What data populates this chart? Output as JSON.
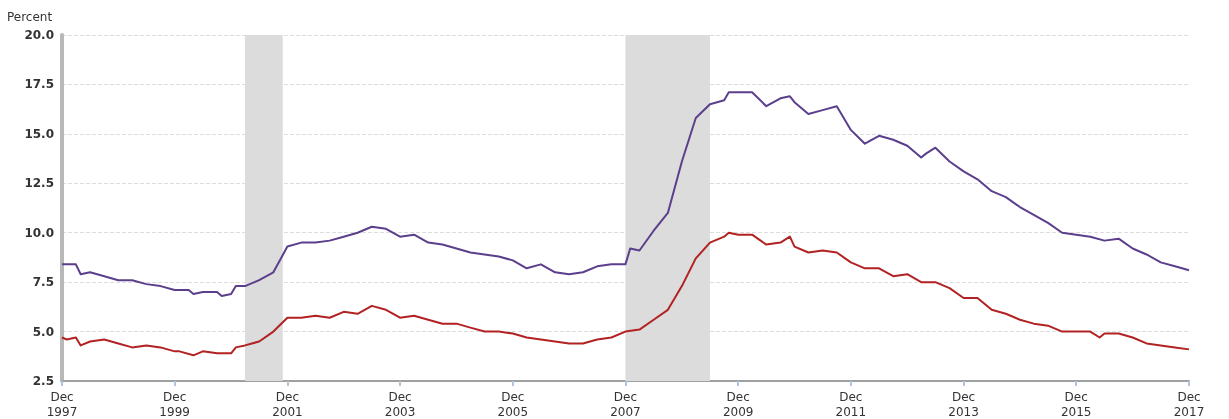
{
  "chart_data": {
    "type": "line",
    "ylabel": "Percent",
    "xlim": [
      "1997-12",
      "2017-12"
    ],
    "xticks": [
      {
        "value": "1997-12",
        "label": "Dec 1997"
      },
      {
        "value": "1999-12",
        "label": "Dec 1999"
      },
      {
        "value": "2001-12",
        "label": "Dec 2001"
      },
      {
        "value": "2003-12",
        "label": "Dec 2003"
      },
      {
        "value": "2005-12",
        "label": "Dec 2005"
      },
      {
        "value": "2007-12",
        "label": "Dec 2007"
      },
      {
        "value": "2009-12",
        "label": "Dec 2009"
      },
      {
        "value": "2011-12",
        "label": "Dec 2011"
      },
      {
        "value": "2013-12",
        "label": "Dec 2013"
      },
      {
        "value": "2015-12",
        "label": "Dec 2015"
      },
      {
        "value": "2017-12",
        "label": "Dec 2017"
      }
    ],
    "ylim": [
      2.5,
      20
    ],
    "yticks": [
      {
        "value": 2.5,
        "label": "2.5"
      },
      {
        "value": 5,
        "label": "5.0"
      },
      {
        "value": 7.5,
        "label": "7.5"
      },
      {
        "value": 10,
        "label": "10.0"
      },
      {
        "value": 12.5,
        "label": "12.5"
      },
      {
        "value": 15,
        "label": "15.0"
      },
      {
        "value": 17.5,
        "label": "17.5"
      },
      {
        "value": 20,
        "label": "20.0"
      }
    ],
    "grid": "y",
    "marker": "none",
    "line_style": "solid",
    "bands": [
      {
        "axis": "x",
        "from": "2001-03",
        "to": "2001-11",
        "color": "#dcdcdc"
      },
      {
        "axis": "x",
        "from": "2007-12",
        "to": "2009-06",
        "color": "#dcdcdc"
      }
    ],
    "series": [
      {
        "color": "#5b3f8c",
        "x": [
          "1997-12",
          "1998-03",
          "1998-04",
          "1998-06",
          "1998-09",
          "1998-12",
          "1999-03",
          "1999-06",
          "1999-09",
          "1999-12",
          "2000-03",
          "2000-04",
          "2000-06",
          "2000-09",
          "2000-10",
          "2000-12",
          "2001-01",
          "2001-03",
          "2001-06",
          "2001-09",
          "2001-12",
          "2002-03",
          "2002-06",
          "2002-09",
          "2002-12",
          "2003-03",
          "2003-06",
          "2003-09",
          "2003-12",
          "2004-03",
          "2004-06",
          "2004-09",
          "2004-12",
          "2005-03",
          "2005-06",
          "2005-09",
          "2005-12",
          "2006-03",
          "2006-06",
          "2006-09",
          "2006-12",
          "2007-03",
          "2007-06",
          "2007-09",
          "2007-12",
          "2008-01",
          "2008-03",
          "2008-06",
          "2008-09",
          "2008-12",
          "2009-03",
          "2009-06",
          "2009-09",
          "2009-10",
          "2009-12",
          "2010-03",
          "2010-06",
          "2010-09",
          "2010-11",
          "2010-12",
          "2011-03",
          "2011-06",
          "2011-09",
          "2011-12",
          "2012-03",
          "2012-06",
          "2012-09",
          "2012-12",
          "2013-03",
          "2013-04",
          "2013-06",
          "2013-09",
          "2013-12",
          "2014-03",
          "2014-06",
          "2014-09",
          "2014-12",
          "2015-03",
          "2015-06",
          "2015-09",
          "2015-12",
          "2016-03",
          "2016-06",
          "2016-09",
          "2016-12",
          "2017-03",
          "2017-06",
          "2017-09",
          "2017-12"
        ],
        "values": [
          8.4,
          8.4,
          7.9,
          8.0,
          7.8,
          7.6,
          7.6,
          7.4,
          7.3,
          7.1,
          7.1,
          6.9,
          7.0,
          7.0,
          6.8,
          6.9,
          7.3,
          7.3,
          7.6,
          8.0,
          9.3,
          9.5,
          9.5,
          9.6,
          9.8,
          10.0,
          10.3,
          10.2,
          9.8,
          9.9,
          9.5,
          9.4,
          9.2,
          9.0,
          8.9,
          8.8,
          8.6,
          8.2,
          8.4,
          8.0,
          7.9,
          8.0,
          8.3,
          8.4,
          8.4,
          9.2,
          9.1,
          10.1,
          11.0,
          13.6,
          15.8,
          16.5,
          16.7,
          17.1,
          17.1,
          17.1,
          16.4,
          16.8,
          16.9,
          16.6,
          16.0,
          16.2,
          16.4,
          15.2,
          14.5,
          14.9,
          14.7,
          14.4,
          13.8,
          14.0,
          14.3,
          13.6,
          13.1,
          12.7,
          12.1,
          11.8,
          11.3,
          10.9,
          10.5,
          10.0,
          9.9,
          9.8,
          9.6,
          9.7,
          9.2,
          8.9,
          8.5,
          8.3,
          8.1
        ]
      },
      {
        "color": "#b22222",
        "x": [
          "1997-12",
          "1998-01",
          "1998-03",
          "1998-04",
          "1998-06",
          "1998-09",
          "1998-12",
          "1999-03",
          "1999-06",
          "1999-09",
          "1999-12",
          "2000-01",
          "2000-04",
          "2000-06",
          "2000-09",
          "2000-12",
          "2001-01",
          "2001-03",
          "2001-06",
          "2001-09",
          "2001-12",
          "2002-03",
          "2002-06",
          "2002-09",
          "2002-12",
          "2003-03",
          "2003-06",
          "2003-09",
          "2003-12",
          "2004-03",
          "2004-06",
          "2004-09",
          "2004-12",
          "2005-03",
          "2005-06",
          "2005-09",
          "2005-12",
          "2006-03",
          "2006-06",
          "2006-09",
          "2006-12",
          "2007-03",
          "2007-06",
          "2007-09",
          "2007-12",
          "2008-03",
          "2008-06",
          "2008-09",
          "2008-12",
          "2009-03",
          "2009-06",
          "2009-09",
          "2009-10",
          "2009-12",
          "2010-03",
          "2010-06",
          "2010-09",
          "2010-11",
          "2010-12",
          "2011-03",
          "2011-06",
          "2011-09",
          "2011-12",
          "2012-03",
          "2012-06",
          "2012-09",
          "2012-12",
          "2013-03",
          "2013-06",
          "2013-09",
          "2013-12",
          "2014-03",
          "2014-06",
          "2014-09",
          "2014-12",
          "2015-03",
          "2015-06",
          "2015-09",
          "2015-12",
          "2016-03",
          "2016-05",
          "2016-06",
          "2016-09",
          "2016-12",
          "2017-03",
          "2017-06",
          "2017-09",
          "2017-12"
        ],
        "values": [
          4.7,
          4.6,
          4.7,
          4.3,
          4.5,
          4.6,
          4.4,
          4.2,
          4.3,
          4.2,
          4.0,
          4.0,
          3.8,
          4.0,
          3.9,
          3.9,
          4.2,
          4.3,
          4.5,
          5.0,
          5.7,
          5.7,
          5.8,
          5.7,
          6.0,
          5.9,
          6.3,
          6.1,
          5.7,
          5.8,
          5.6,
          5.4,
          5.4,
          5.2,
          5.0,
          5.0,
          4.9,
          4.7,
          4.6,
          4.5,
          4.4,
          4.4,
          4.6,
          4.7,
          5.0,
          5.1,
          5.6,
          6.1,
          7.3,
          8.7,
          9.5,
          9.8,
          10.0,
          9.9,
          9.9,
          9.4,
          9.5,
          9.8,
          9.3,
          9.0,
          9.1,
          9.0,
          8.5,
          8.2,
          8.2,
          7.8,
          7.9,
          7.5,
          7.5,
          7.2,
          6.7,
          6.7,
          6.1,
          5.9,
          5.6,
          5.4,
          5.3,
          5.0,
          5.0,
          5.0,
          4.7,
          4.9,
          4.9,
          4.7,
          4.4,
          4.3,
          4.2,
          4.1
        ]
      }
    ]
  }
}
